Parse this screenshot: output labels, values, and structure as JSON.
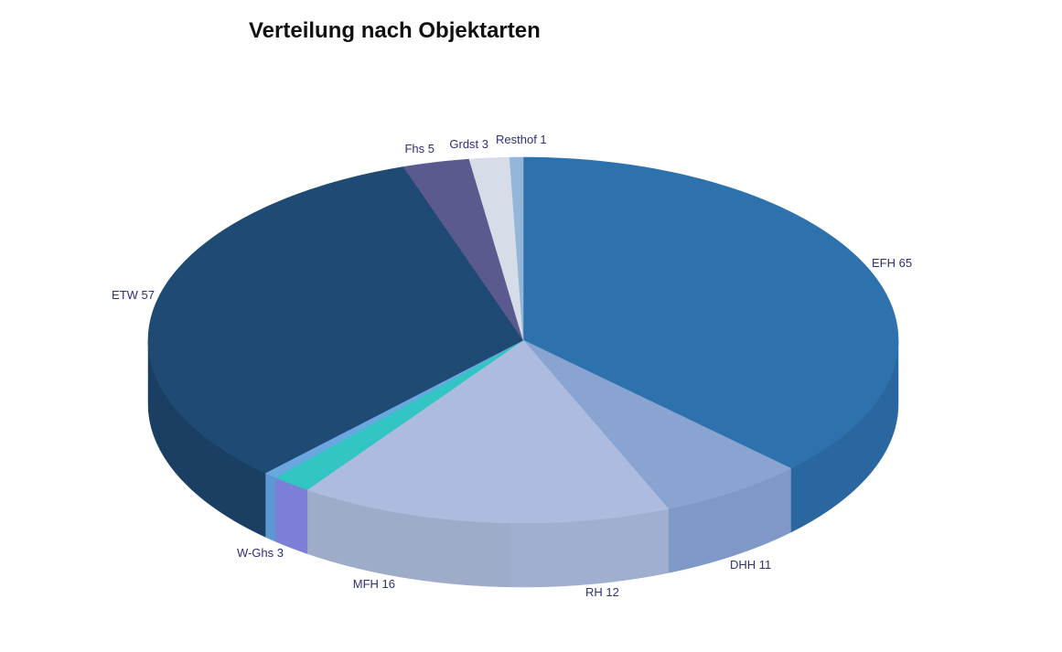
{
  "chart_data": {
    "type": "pie",
    "title": "Verteilung nach Objektarten",
    "slices": [
      {
        "label": "EFH 65",
        "name": "EFH",
        "value": 65,
        "top": "#2e72ad",
        "side": "#2a67a0"
      },
      {
        "label": "DHH 11",
        "name": "DHH",
        "value": 11,
        "top": "#8aa4d2",
        "side": "#7f98c8"
      },
      {
        "label": "RH 12",
        "name": "RH",
        "value": 12,
        "top": "#adbcde",
        "side": "#a0aecf"
      },
      {
        "label": "MFH 16",
        "name": "MFH",
        "value": 16,
        "top": "#adbcde",
        "side": "#9eabc9"
      },
      {
        "label": "W-Ghs 3",
        "name": "W-Ghs",
        "value": 3,
        "top": "#33c4c4",
        "side": "#7c7ed8"
      },
      {
        "label": "",
        "name": "",
        "value": 1,
        "top": "#6aa6e0",
        "side": "#5b97d0"
      },
      {
        "label": "ETW 57",
        "name": "ETW",
        "value": 57,
        "top": "#1f4a73",
        "side": "#1b3f63"
      },
      {
        "label": "Fhs 5",
        "name": "Fhs",
        "value": 5,
        "top": "#5a5a8e",
        "side": "#4a4a78"
      },
      {
        "label": "Grdst 3",
        "name": "Grdst",
        "value": 3,
        "top": "#d6dde9",
        "side": "#c7cfdd"
      },
      {
        "label": "Resthof  1",
        "name": "Resthof",
        "value": 1,
        "top": "#93b6d9",
        "side": "#84a6c8"
      }
    ]
  }
}
